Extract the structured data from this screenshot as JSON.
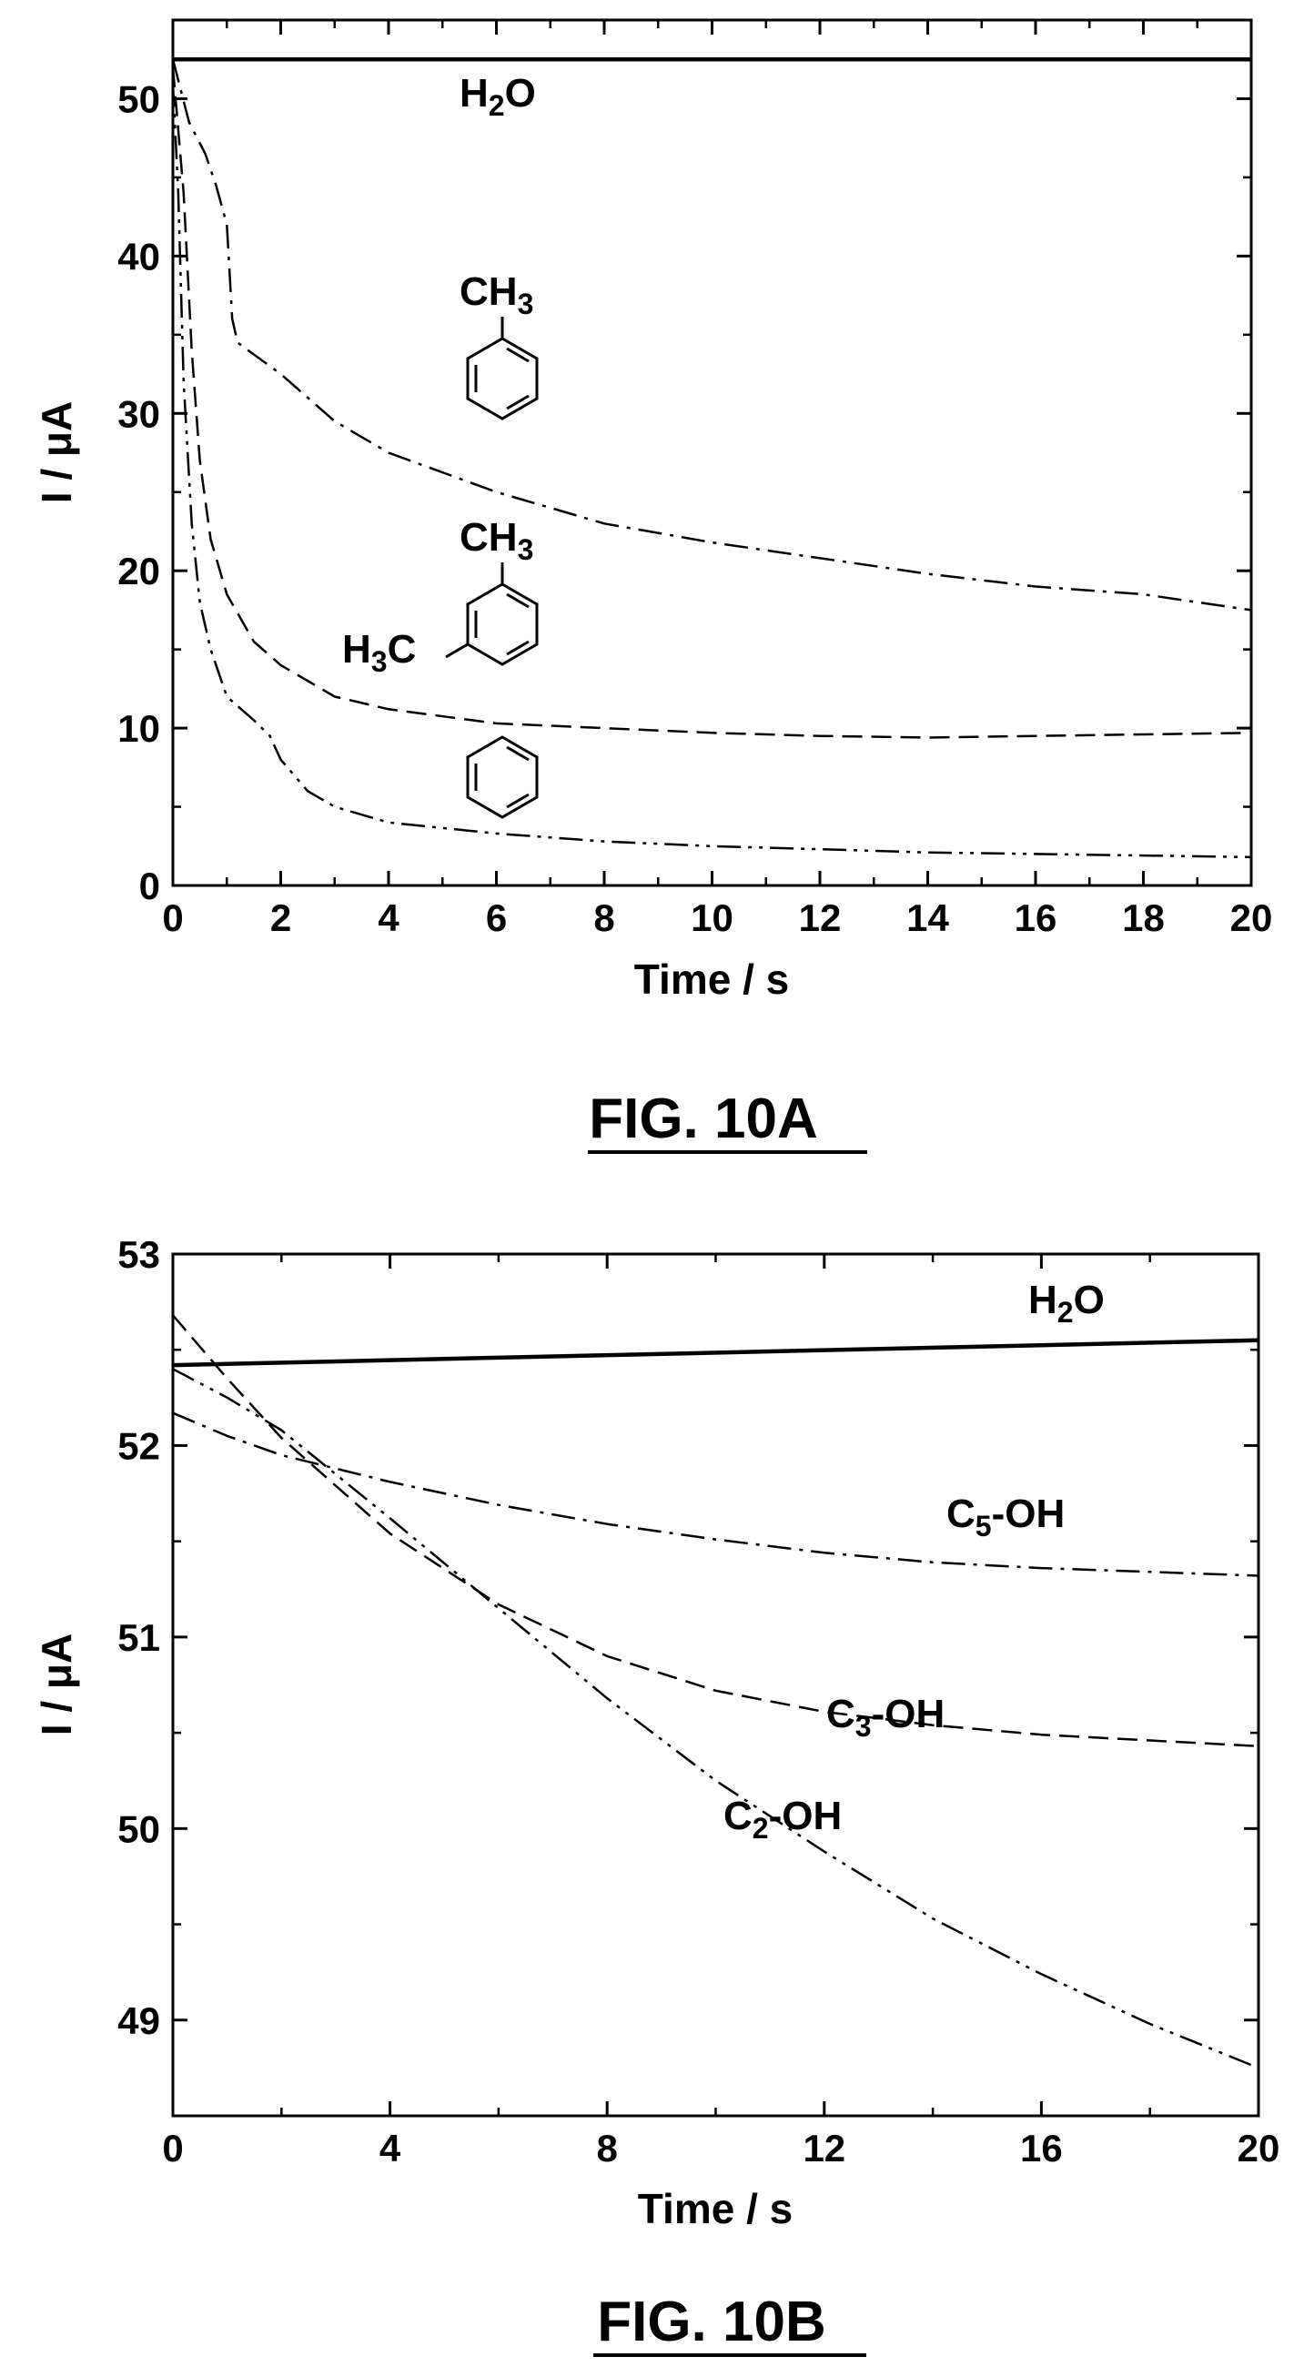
{
  "chart_data": [
    {
      "type": "line",
      "caption": "FIG. 10A",
      "xlabel": "Time / s",
      "ylabel": "I / μA",
      "xlim": [
        0,
        20
      ],
      "ylim": [
        0,
        55
      ],
      "xticks": [
        0,
        2,
        4,
        6,
        8,
        10,
        12,
        14,
        16,
        18,
        20
      ],
      "yticks": [
        0,
        10,
        20,
        30,
        40,
        50
      ],
      "grid": false,
      "legend": "none (curves labeled with structures)",
      "series": [
        {
          "line_style": "solid",
          "x": [
            0,
            20
          ],
          "y": [
            52.5,
            52.5
          ]
        },
        {
          "line_style": "dash-dot",
          "x": [
            0,
            0.3,
            0.6,
            0.8,
            1.0,
            1.1,
            1.2,
            1.4,
            2,
            3,
            4,
            6,
            8,
            10,
            12,
            14,
            16,
            18,
            20
          ],
          "y": [
            52.5,
            48.5,
            46.5,
            44.5,
            42,
            36,
            34.5,
            34,
            32.5,
            29.5,
            27.5,
            25,
            23,
            21.8,
            20.8,
            19.8,
            19,
            18.5,
            17.5
          ]
        },
        {
          "line_style": "dashed",
          "x": [
            0,
            0.2,
            0.35,
            0.5,
            0.7,
            1.0,
            1.5,
            2,
            3,
            4,
            6,
            8,
            10,
            12,
            14,
            16,
            18,
            20
          ],
          "y": [
            52,
            44,
            34,
            27,
            22,
            18.5,
            15.5,
            14,
            12,
            11.2,
            10.3,
            10,
            9.7,
            9.5,
            9.4,
            9.5,
            9.6,
            9.7
          ]
        },
        {
          "line_style": "dash-dot-dot",
          "x": [
            0,
            0.1,
            0.2,
            0.35,
            0.5,
            0.7,
            1.0,
            1.5,
            1.8,
            2.0,
            2.5,
            3,
            4,
            6,
            8,
            10,
            12,
            14,
            16,
            18,
            20
          ],
          "y": [
            51,
            44,
            32,
            23,
            18,
            15,
            12,
            10.5,
            9.5,
            8,
            6,
            5,
            4,
            3.3,
            2.8,
            2.5,
            2.3,
            2.1,
            2.0,
            1.9,
            1.8
          ]
        }
      ],
      "annotations": {
        "water_label": "H2O",
        "water_label_main": "H",
        "water_label_sub": "2",
        "water_label_tail": "O",
        "toluene_label": "CH3",
        "toluene_label_main": "CH",
        "toluene_label_sub": "3",
        "xylene_label_top": "CH3",
        "xylene_label_top_main": "CH",
        "xylene_label_top_sub": "3",
        "xylene_label_left": "H3C",
        "xylene_label_left_main": "H",
        "xylene_label_left_sub": "3",
        "xylene_label_left_tail": "C"
      }
    },
    {
      "type": "line",
      "caption": "FIG. 10B",
      "xlabel": "Time / s",
      "ylabel": "I / μA",
      "xlim": [
        0,
        20
      ],
      "ylim": [
        48.5,
        53
      ],
      "xticks": [
        0,
        4,
        8,
        12,
        16,
        20
      ],
      "yticks": [
        49,
        50,
        51,
        52,
        53
      ],
      "grid": false,
      "legend": "none (curves labeled directly)",
      "series": [
        {
          "name": "H2O",
          "line_style": "solid",
          "x": [
            0,
            20
          ],
          "y": [
            52.42,
            52.55
          ]
        },
        {
          "name": "C5-OH",
          "line_style": "dash-dot",
          "x": [
            0,
            1,
            2,
            4,
            6,
            8,
            10,
            12,
            14,
            16,
            18,
            20
          ],
          "y": [
            52.17,
            52.05,
            51.95,
            51.81,
            51.69,
            51.59,
            51.51,
            51.44,
            51.39,
            51.36,
            51.34,
            51.32
          ]
        },
        {
          "name": "C3-OH",
          "line_style": "dashed",
          "x": [
            0,
            1,
            2,
            4,
            6,
            8,
            10,
            12,
            14,
            16,
            18,
            20
          ],
          "y": [
            52.68,
            52.35,
            52.04,
            51.54,
            51.17,
            50.9,
            50.72,
            50.61,
            50.54,
            50.49,
            50.46,
            50.43
          ]
        },
        {
          "name": "C2-OH",
          "line_style": "dash-dot-dot",
          "x": [
            0,
            1,
            2,
            4,
            6,
            8,
            10,
            12,
            14,
            16,
            18,
            20
          ],
          "y": [
            52.4,
            52.25,
            52.08,
            51.62,
            51.15,
            50.68,
            50.25,
            49.88,
            49.53,
            49.24,
            48.98,
            48.75
          ]
        }
      ],
      "annotations": {
        "water_label": "H2O",
        "water_label_main": "H",
        "water_label_sub": "2",
        "water_label_tail": "O",
        "c5_label": "C5-OH",
        "c5_label_main": "C",
        "c5_label_sub": "5",
        "c5_label_tail": "-OH",
        "c3_label": "C3-OH",
        "c3_label_main": "C",
        "c3_label_sub": "3",
        "c3_label_tail": "-OH",
        "c2_label": "C2-OH",
        "c2_label_main": "C",
        "c2_label_sub": "2",
        "c2_label_tail": "-OH"
      }
    }
  ]
}
